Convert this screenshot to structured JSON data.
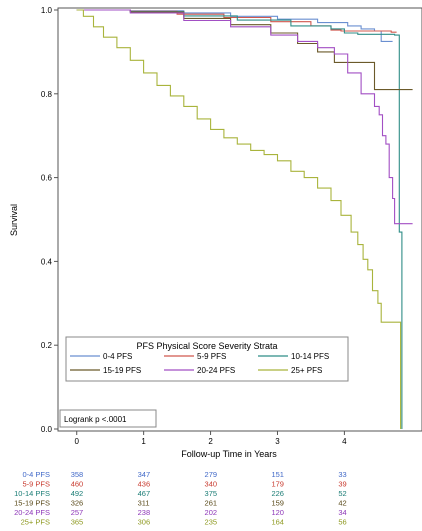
{
  "chart_data": {
    "type": "line",
    "subtype": "kaplan-meier step curves",
    "xlabel": "Follow-up Time in Years",
    "ylabel": "Survival",
    "xlim": [
      -0.25,
      5.1
    ],
    "ylim": [
      0,
      1.0
    ],
    "x_ticks": [
      "0",
      "1",
      "2",
      "3",
      "4"
    ],
    "y_ticks": [
      "0.0",
      "0.2",
      "0.4",
      "0.6",
      "0.8",
      "1.0"
    ],
    "grid": false,
    "annotation": "Logrank p <.0001",
    "legend": {
      "title": "PFS Physical Score Severity Strata",
      "placement": "bottom-left-inside"
    },
    "series": [
      {
        "name": "0-4 PFS",
        "color": "#6a8fd0",
        "points": [
          [
            0,
            1.0
          ],
          [
            0.8,
            0.998
          ],
          [
            1.6,
            0.993
          ],
          [
            2.3,
            0.985
          ],
          [
            3.0,
            0.978
          ],
          [
            3.6,
            0.97
          ],
          [
            4.05,
            0.962
          ],
          [
            4.25,
            0.955
          ],
          [
            4.45,
            0.95
          ],
          [
            4.55,
            0.925
          ],
          [
            4.72,
            0.925
          ]
        ]
      },
      {
        "name": "5-9 PFS",
        "color": "#d0584d",
        "points": [
          [
            0,
            1.0
          ],
          [
            0.8,
            0.997
          ],
          [
            1.5,
            0.99
          ],
          [
            2.2,
            0.982
          ],
          [
            2.9,
            0.972
          ],
          [
            3.5,
            0.962
          ],
          [
            3.8,
            0.952
          ],
          [
            3.95,
            0.95
          ],
          [
            4.7,
            0.947
          ],
          [
            4.78,
            0.947
          ]
        ]
      },
      {
        "name": "10-14 PFS",
        "color": "#2f8d87",
        "points": [
          [
            0,
            1.0
          ],
          [
            0.8,
            0.996
          ],
          [
            1.6,
            0.986
          ],
          [
            2.4,
            0.976
          ],
          [
            3.2,
            0.962
          ],
          [
            3.8,
            0.955
          ],
          [
            4.0,
            0.945
          ],
          [
            4.2,
            0.942
          ],
          [
            4.75,
            0.94
          ],
          [
            4.82,
            0.47
          ],
          [
            4.86,
            0.0
          ]
        ]
      },
      {
        "name": "15-19 PFS",
        "color": "#6b5a2a",
        "points": [
          [
            0,
            1.0
          ],
          [
            0.8,
            0.995
          ],
          [
            1.6,
            0.98
          ],
          [
            2.3,
            0.965
          ],
          [
            2.9,
            0.945
          ],
          [
            3.3,
            0.92
          ],
          [
            3.6,
            0.9
          ],
          [
            3.85,
            0.875
          ],
          [
            4.4,
            0.875
          ],
          [
            4.45,
            0.81
          ],
          [
            4.8,
            0.81
          ],
          [
            5.02,
            0.81
          ]
        ]
      },
      {
        "name": "20-24 PFS",
        "color": "#a24fc4",
        "points": [
          [
            0,
            1.0
          ],
          [
            0.8,
            0.993
          ],
          [
            1.6,
            0.975
          ],
          [
            2.3,
            0.96
          ],
          [
            2.9,
            0.94
          ],
          [
            3.3,
            0.925
          ],
          [
            3.6,
            0.91
          ],
          [
            3.85,
            0.895
          ],
          [
            4.05,
            0.85
          ],
          [
            4.2,
            0.85
          ],
          [
            4.25,
            0.8
          ],
          [
            4.4,
            0.8
          ],
          [
            4.45,
            0.77
          ],
          [
            4.52,
            0.75
          ],
          [
            4.57,
            0.7
          ],
          [
            4.62,
            0.68
          ],
          [
            4.67,
            0.6
          ],
          [
            4.72,
            0.55
          ],
          [
            4.75,
            0.49
          ],
          [
            5.02,
            0.49
          ]
        ]
      },
      {
        "name": "25+ PFS",
        "color": "#a9b43c",
        "points": [
          [
            0,
            1.0
          ],
          [
            0.1,
            0.985
          ],
          [
            0.25,
            0.96
          ],
          [
            0.4,
            0.935
          ],
          [
            0.6,
            0.91
          ],
          [
            0.8,
            0.88
          ],
          [
            1.0,
            0.85
          ],
          [
            1.2,
            0.82
          ],
          [
            1.4,
            0.795
          ],
          [
            1.6,
            0.77
          ],
          [
            1.8,
            0.74
          ],
          [
            2.0,
            0.715
          ],
          [
            2.2,
            0.695
          ],
          [
            2.4,
            0.68
          ],
          [
            2.6,
            0.665
          ],
          [
            2.8,
            0.655
          ],
          [
            3.0,
            0.64
          ],
          [
            3.2,
            0.615
          ],
          [
            3.4,
            0.6
          ],
          [
            3.6,
            0.575
          ],
          [
            3.8,
            0.545
          ],
          [
            3.95,
            0.51
          ],
          [
            4.1,
            0.47
          ],
          [
            4.2,
            0.44
          ],
          [
            4.28,
            0.405
          ],
          [
            4.35,
            0.38
          ],
          [
            4.42,
            0.33
          ],
          [
            4.5,
            0.3
          ],
          [
            4.55,
            0.255
          ],
          [
            4.8,
            0.255
          ],
          [
            4.84,
            0.0
          ]
        ]
      }
    ]
  },
  "risk_table": {
    "times": [
      "0",
      "1",
      "2",
      "3",
      "4"
    ],
    "rows": [
      {
        "label": "0-4 PFS",
        "color": "#4169c8",
        "counts": [
          "358",
          "347",
          "279",
          "151",
          "33"
        ]
      },
      {
        "label": "5-9 PFS",
        "color": "#c83a2e",
        "counts": [
          "460",
          "436",
          "340",
          "179",
          "39"
        ]
      },
      {
        "label": "10-14 PFS",
        "color": "#1b7d76",
        "counts": [
          "492",
          "467",
          "375",
          "226",
          "52"
        ]
      },
      {
        "label": "15-19 PFS",
        "color": "#5a4a1a",
        "counts": [
          "326",
          "311",
          "261",
          "159",
          "42"
        ]
      },
      {
        "label": "20-24 PFS",
        "color": "#8e37b8",
        "counts": [
          "257",
          "238",
          "202",
          "120",
          "34"
        ]
      },
      {
        "label": "25+ PFS",
        "color": "#8f9a22",
        "counts": [
          "365",
          "306",
          "235",
          "164",
          "56"
        ]
      }
    ]
  }
}
